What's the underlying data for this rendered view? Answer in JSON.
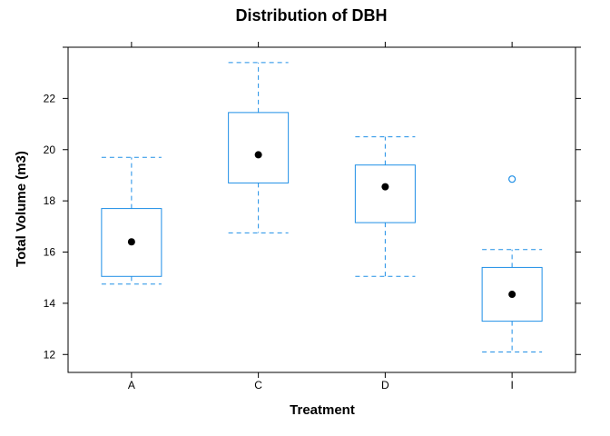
{
  "chart_data": {
    "type": "box",
    "title": "Distribution of DBH",
    "xlabel": "Treatment",
    "ylabel": "Total Volume (m3)",
    "categories": [
      "A",
      "C",
      "D",
      "I"
    ],
    "ylim": [
      11.3,
      24.0
    ],
    "yticks": [
      12,
      14,
      16,
      18,
      20,
      22
    ],
    "boxes": [
      {
        "category": "A",
        "whisker_low": 14.75,
        "q1": 15.05,
        "median": 16.4,
        "q3": 17.7,
        "whisker_high": 19.7,
        "outliers": []
      },
      {
        "category": "C",
        "whisker_low": 16.75,
        "q1": 18.7,
        "median": 19.8,
        "q3": 21.45,
        "whisker_high": 23.4,
        "outliers": []
      },
      {
        "category": "D",
        "whisker_low": 15.05,
        "q1": 17.15,
        "median": 18.55,
        "q3": 19.4,
        "whisker_high": 20.5,
        "outliers": []
      },
      {
        "category": "I",
        "whisker_low": 12.1,
        "q1": 13.3,
        "median": 14.35,
        "q3": 15.4,
        "whisker_high": 16.1,
        "outliers": [
          18.85
        ]
      }
    ],
    "color": "#1f8fe6",
    "median_color": "#000000",
    "grid": false,
    "legend": "none"
  }
}
